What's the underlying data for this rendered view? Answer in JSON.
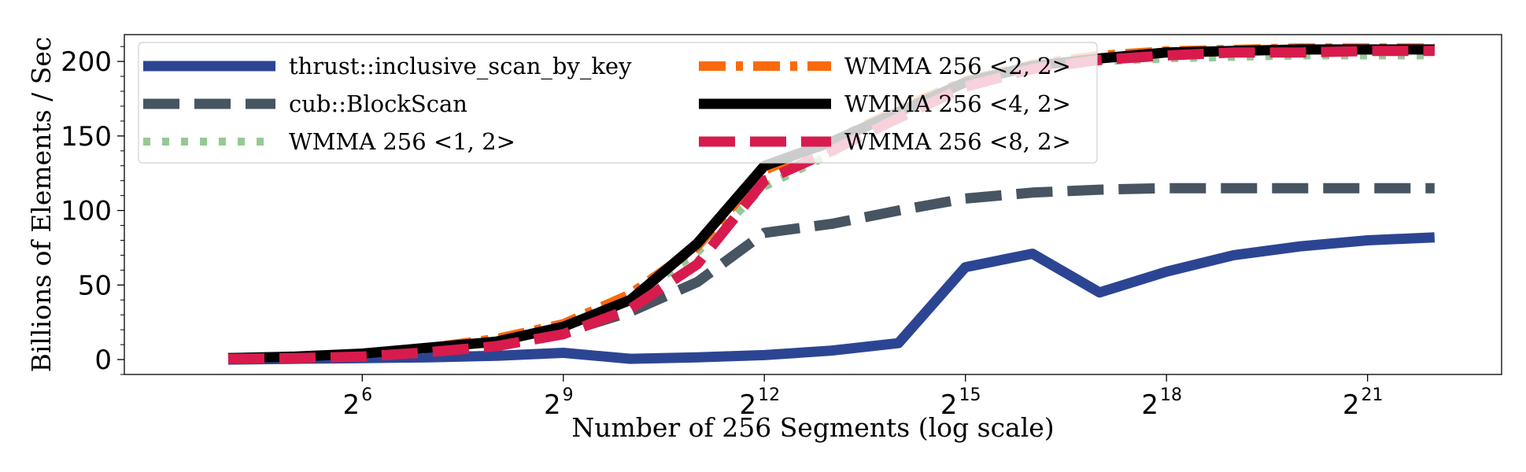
{
  "chart_data": {
    "type": "line",
    "xlabel": "Number of 256 Segments (log scale)",
    "ylabel": "Billions of Elements / Sec",
    "xscale": "log2",
    "x_exponents": [
      4,
      5,
      6,
      7,
      8,
      9,
      10,
      11,
      12,
      13,
      14,
      15,
      16,
      17,
      18,
      19,
      20,
      21,
      22
    ],
    "xlim_exponent": [
      2.45,
      23.0
    ],
    "ylim": [
      -10,
      218
    ],
    "yticks": [
      0,
      50,
      100,
      150,
      200
    ],
    "xtick_base": "2",
    "xtick_exponents": [
      6,
      9,
      12,
      15,
      18,
      21
    ],
    "grid": false,
    "legend": {
      "placement": "upper-left",
      "columns": 2
    },
    "series": [
      {
        "name": "thrust::inclusive_scan_by_key",
        "color": "#2c4593",
        "style": "solid",
        "values": [
          0,
          0.5,
          1,
          1.5,
          2.5,
          4.5,
          0.5,
          1.5,
          3,
          6,
          11,
          62,
          71,
          45,
          59,
          70,
          76,
          80,
          82
        ]
      },
      {
        "name": "cub::BlockScan",
        "color": "#475462",
        "style": "dashed",
        "values": [
          1,
          1.5,
          3,
          6,
          10,
          18,
          32,
          52,
          85,
          91,
          100,
          108,
          112,
          114,
          115,
          115,
          115,
          115,
          115
        ]
      },
      {
        "name": "WMMA 256 <1, 2>",
        "color": "#96c896",
        "style": "dotted",
        "values": [
          1,
          2,
          4,
          7,
          13,
          22,
          40,
          72,
          116,
          138,
          165,
          186,
          196,
          200,
          202,
          203,
          204,
          204,
          204
        ]
      },
      {
        "name": "WMMA 256 <2, 2>",
        "color": "#f96a0c",
        "style": "dashdot",
        "values": [
          1,
          2,
          4,
          8,
          14,
          24,
          44,
          76,
          127,
          146,
          168,
          187,
          198,
          204,
          207,
          208,
          209,
          209,
          209
        ]
      },
      {
        "name": "WMMA 256 <4, 2>",
        "color": "#000000",
        "style": "solid",
        "values": [
          1,
          2,
          4,
          8,
          12,
          22,
          40,
          78,
          130,
          146,
          166,
          186,
          197,
          202,
          206,
          207,
          208,
          208,
          208
        ]
      },
      {
        "name": "WMMA 256 <8, 2>",
        "color": "#d81b4d",
        "style": "dashed",
        "values": [
          0.5,
          1,
          2,
          5,
          9,
          17,
          34,
          64,
          120,
          140,
          162,
          183,
          195,
          201,
          204,
          206,
          206,
          207,
          207
        ]
      }
    ]
  }
}
